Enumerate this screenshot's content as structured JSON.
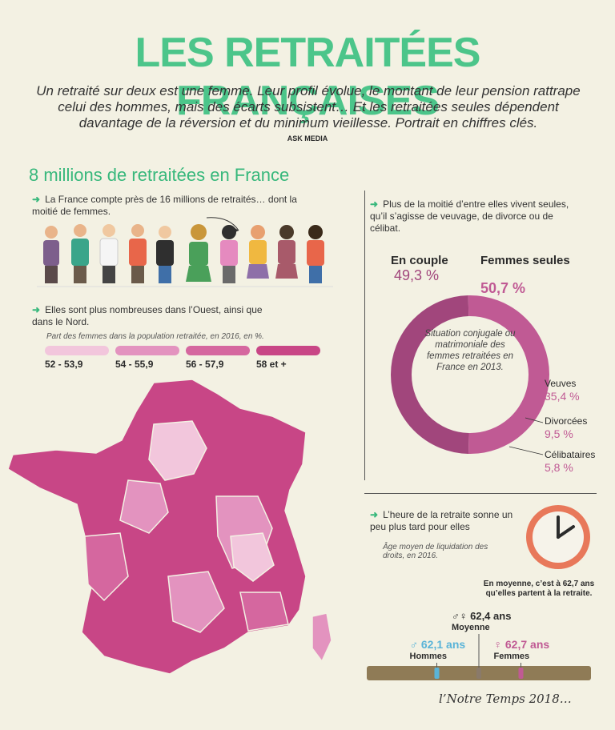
{
  "title": "LES RETRAITÉES FRANÇAISES",
  "intro": "Un retraité sur deux est une femme. Leur profil évolue, le montant de leur pension rattrape celui des hommes, mais des écarts subsistent… Et les retraitées seules dépendent davantage de la réversion et du minimum vieillesse. Portrait en chiffres clés.",
  "credit": "ASK MEDIA",
  "section_title": "8 millions de retraitées en France",
  "fact1": "La France compte près de 16 millions de retraités… dont la moitié de femmes.",
  "fact2": "Elles sont plus nombreuses dans l’Ouest, ainsi que dans le Nord.",
  "map_caption": "Part des femmes dans la population retraitée, en 2016, en %.",
  "fact3": "Plus de la moitié d’entre elles vivent seules, qu’il s’agisse de veuvage, de divorce ou de célibat.",
  "fact4": "L’heure de la retraite sonne un peu plus tard pour elles",
  "timeline_caption": "Âge moyen de liquidation des droits, en 2016.",
  "signature": "l’Notre Temps 2018…",
  "colors": {
    "green": "#4cc58a",
    "couple": "#a1467c",
    "seules": "#c05a94",
    "men": "#5ab4d8"
  },
  "chart_data": [
    {
      "type": "pie",
      "title": "Situation conjugale ou matrimoniale des femmes retraitées en France en 2013.",
      "categories": [
        "En couple",
        "Femmes seules"
      ],
      "values": [
        49.3,
        50.7
      ],
      "labels": [
        "49,3 %",
        "50,7 %"
      ],
      "breakdown": {
        "of": "Femmes seules",
        "categories": [
          "Veuves",
          "Divorcées",
          "Célibataires"
        ],
        "values": [
          35.4,
          9.5,
          5.8
        ],
        "labels": [
          "35,4 %",
          "9,5 %",
          "5,8 %"
        ]
      }
    },
    {
      "type": "scatter",
      "title": "Âge moyen de liquidation des droits, en 2016.",
      "annotation": "En moyenne, c’est à 62,7 ans qu’elles partent à la retraite.",
      "categories": [
        "Hommes",
        "Moyenne",
        "Femmes"
      ],
      "values": [
        62.1,
        62.4,
        62.7
      ],
      "labels": [
        "62,1 ans",
        "62,4 ans",
        "62,7 ans"
      ],
      "unit": "ans"
    },
    {
      "type": "heatmap",
      "title": "Part des femmes dans la population retraitée, en 2016, en %.",
      "legend": [
        {
          "label": "52 - 53,9",
          "color": "#f2c6dc"
        },
        {
          "label": "54 - 55,9",
          "color": "#e393bf"
        },
        {
          "label": "56 - 57,9",
          "color": "#d5679f"
        },
        {
          "label": "58 et +",
          "color": "#c84686"
        }
      ]
    }
  ]
}
